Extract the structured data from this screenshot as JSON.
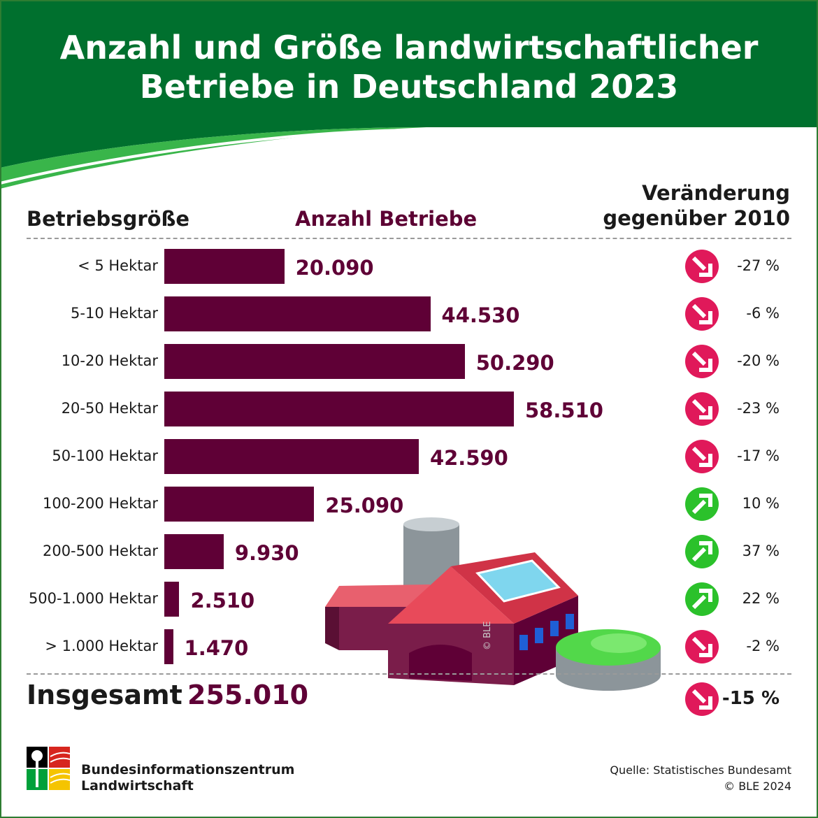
{
  "title": {
    "line1": "Anzahl und Größe landwirtschaftlicher",
    "line2": "Betriebe in Deutschland 2023"
  },
  "columns": {
    "size": "Betriebsgröße",
    "count": "Anzahl Betriebe",
    "change_line1": "Veränderung",
    "change_line2": "gegenüber 2010"
  },
  "colors": {
    "header_green": "#00702e",
    "bar": "#5f0036",
    "down": "#e0195a",
    "up": "#2bc12b"
  },
  "chart_data": {
    "type": "bar",
    "orientation": "horizontal",
    "categories": [
      "< 5 Hektar",
      "5-10 Hektar",
      "10-20 Hektar",
      "20-50 Hektar",
      "50-100 Hektar",
      "100-200 Hektar",
      "200-500 Hektar",
      "500-1.000 Hektar",
      "> 1.000 Hektar"
    ],
    "values": [
      20090,
      44530,
      50290,
      58510,
      42590,
      25090,
      9930,
      2510,
      1470
    ],
    "value_labels": [
      "20.090",
      "44.530",
      "50.290",
      "58.510",
      "42.590",
      "25.090",
      "9.930",
      "2.510",
      "1.470"
    ],
    "changes": [
      "-27 %",
      "-6 %",
      "-20 %",
      "-23 %",
      "-17 %",
      "10 %",
      "37 %",
      "22 %",
      "-2 %"
    ],
    "change_direction": [
      "down",
      "down",
      "down",
      "down",
      "down",
      "up",
      "up",
      "up",
      "down"
    ],
    "xlim": [
      0,
      58510
    ]
  },
  "total": {
    "label": "Insgesamt",
    "value": "255.010",
    "change": "-15 %",
    "direction": "down"
  },
  "footer": {
    "org_line1": "Bundesinformationszentrum",
    "org_line2": "Landwirtschaft",
    "source": "Quelle: Statistisches Bundesamt",
    "copyright": "© BLE 2024"
  },
  "watermark": "© BLE"
}
